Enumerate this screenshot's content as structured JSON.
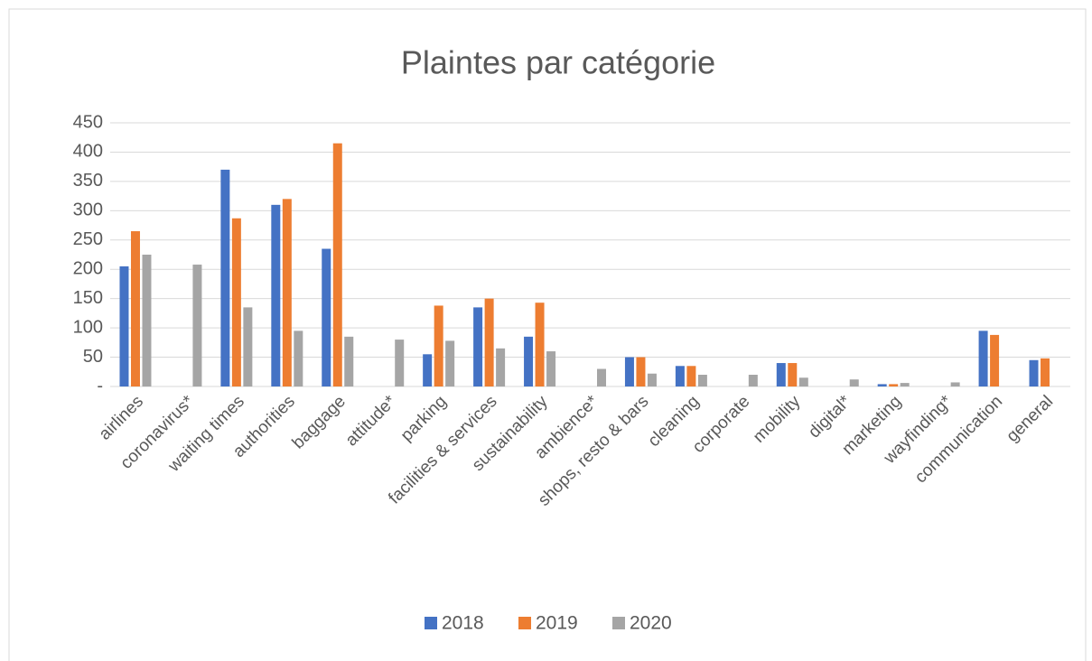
{
  "chart_data": {
    "type": "bar",
    "title": "Plaintes par catégorie",
    "categories": [
      "airlines",
      "coronavirus*",
      "waiting times",
      "authorities",
      "baggage",
      "attitude*",
      "parking",
      "facilities & services",
      "sustainability",
      "ambience*",
      "shops, resto & bars",
      "cleaning",
      "corporate",
      "mobility",
      "digital*",
      "marketing",
      "wayfinding*",
      "communication",
      "general"
    ],
    "series": [
      {
        "name": "2018",
        "color": "#4472c4",
        "values": [
          205,
          null,
          370,
          310,
          235,
          null,
          55,
          135,
          85,
          null,
          50,
          35,
          null,
          40,
          null,
          4,
          null,
          95,
          45
        ]
      },
      {
        "name": "2019",
        "color": "#ed7d31",
        "values": [
          265,
          null,
          287,
          320,
          415,
          null,
          138,
          150,
          143,
          null,
          50,
          35,
          null,
          40,
          null,
          4,
          null,
          88,
          48
        ]
      },
      {
        "name": "2020",
        "color": "#a5a5a5",
        "values": [
          225,
          208,
          135,
          95,
          85,
          80,
          78,
          65,
          60,
          30,
          22,
          20,
          20,
          15,
          12,
          6,
          7,
          null,
          null
        ]
      }
    ],
    "ylim": [
      0,
      450
    ],
    "yticks": [
      {
        "value": 0,
        "label": "-"
      },
      50,
      100,
      150,
      200,
      250,
      300,
      350,
      400,
      450
    ],
    "grid": true,
    "legend": "bottom"
  }
}
